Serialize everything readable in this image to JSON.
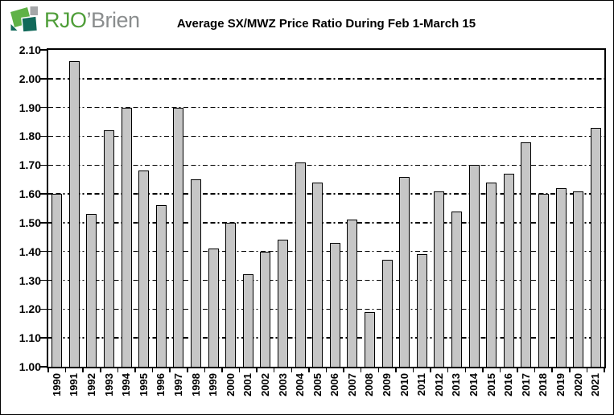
{
  "logo": {
    "text_primary": "RJO",
    "text_secondary": "’Brien",
    "colors": {
      "text_green": "#4f9e39",
      "text_gray": "#8a8d8e",
      "icon_green": "#5fb246",
      "icon_teal": "#11695a",
      "icon_gray": "#a5a7a9"
    }
  },
  "title": "Average SX/MWZ Price Ratio During Feb 1-March 15",
  "chart_data": {
    "type": "bar",
    "title": "Average SX/MWZ Price Ratio During Feb 1-March 15",
    "categories": [
      "1990",
      "1991",
      "1992",
      "1993",
      "1994",
      "1995",
      "1996",
      "1997",
      "1998",
      "1999",
      "2000",
      "2001",
      "2002",
      "2003",
      "2004",
      "2005",
      "2006",
      "2007",
      "2008",
      "2009",
      "2010",
      "2011",
      "2012",
      "2013",
      "2014",
      "2015",
      "2016",
      "2017",
      "2018",
      "2019",
      "2020",
      "2021"
    ],
    "values": [
      1.6,
      2.06,
      1.53,
      1.82,
      1.9,
      1.68,
      1.56,
      1.9,
      1.65,
      1.41,
      1.5,
      1.32,
      1.4,
      1.44,
      1.71,
      1.64,
      1.43,
      1.51,
      1.19,
      1.37,
      1.66,
      1.39,
      1.61,
      1.54,
      1.7,
      1.64,
      1.67,
      1.78,
      1.6,
      1.62,
      1.61,
      1.83
    ],
    "xlabel": "",
    "ylabel": "",
    "ylim": [
      1.0,
      2.1
    ],
    "ytick_step": 0.1,
    "ytick_labels": [
      "1.00",
      "1.10",
      "1.20",
      "1.30",
      "1.40",
      "1.50",
      "1.60",
      "1.70",
      "1.80",
      "1.90",
      "2.00",
      "2.10"
    ],
    "grid": "horizontal-dashed",
    "legend": "none",
    "bar_fill": "#c6c6c6",
    "bar_border": "#000000"
  }
}
